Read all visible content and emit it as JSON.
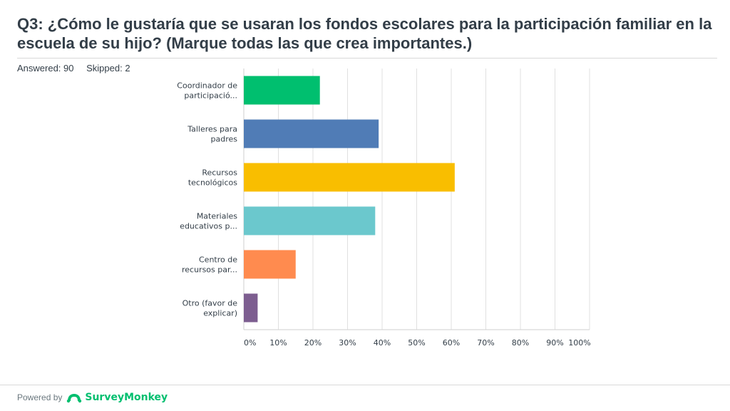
{
  "title": "Q3: ¿Cómo le gustaría que se usaran los fondos escolares para la participación familiar en la escuela de su hijo? (Marque todas las que crea importantes.)",
  "stats": {
    "answered": "Answered: 90",
    "skipped": "Skipped: 2"
  },
  "footer": {
    "powered_by": "Powered by",
    "brand": "SurveyMonkey"
  },
  "icons": {
    "logo": "surveymonkey-logo-icon"
  },
  "chart_data": {
    "type": "bar",
    "orientation": "horizontal",
    "categories": [
      [
        "Coordinador de",
        "participació..."
      ],
      [
        "Talleres para",
        "padres"
      ],
      [
        "Recursos",
        "tecnológicos"
      ],
      [
        "Materiales",
        "educativos p..."
      ],
      [
        "Centro de",
        "recursos par..."
      ],
      [
        "Otro (favor de",
        "explicar)"
      ]
    ],
    "values": [
      22,
      39,
      61,
      38,
      15,
      4
    ],
    "colors": [
      "#00bf6f",
      "#507cb6",
      "#f9be00",
      "#6bc8cd",
      "#ff8b4f",
      "#7d5e90"
    ],
    "xlim": [
      0,
      100
    ],
    "tick_labels": [
      "0%",
      "10%",
      "20%",
      "30%",
      "40%",
      "50%",
      "60%",
      "70%",
      "80%",
      "90%",
      "100%"
    ],
    "grid": true,
    "gridline_color": "#e0e0e0"
  }
}
